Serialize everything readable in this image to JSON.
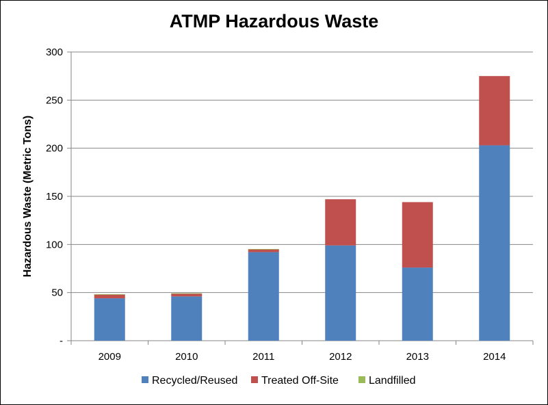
{
  "chart_data": {
    "type": "bar",
    "stacked": true,
    "title": "ATMP Hazardous Waste",
    "xlabel": "",
    "ylabel": "Hazardous Waste (Metric Tons)",
    "ylim": [
      0,
      300
    ],
    "yticks": [
      0,
      50,
      100,
      150,
      200,
      250,
      300
    ],
    "ytick_labels": [
      "-",
      "50",
      "100",
      "150",
      "200",
      "250",
      "300"
    ],
    "grid": true,
    "legend_position": "bottom",
    "categories": [
      "2009",
      "2010",
      "2011",
      "2012",
      "2013",
      "2014"
    ],
    "series": [
      {
        "name": "Recycled/Reused",
        "color": "#4f81bd",
        "values": [
          44,
          46,
          92,
          99,
          76,
          203
        ]
      },
      {
        "name": "Treated Off-Site",
        "color": "#c0504d",
        "values": [
          4,
          3,
          3,
          48,
          68,
          72
        ]
      },
      {
        "name": "Landfilled",
        "color": "#9bbb59",
        "values": [
          0.3,
          0.3,
          0.3,
          0,
          0,
          0
        ]
      }
    ]
  }
}
